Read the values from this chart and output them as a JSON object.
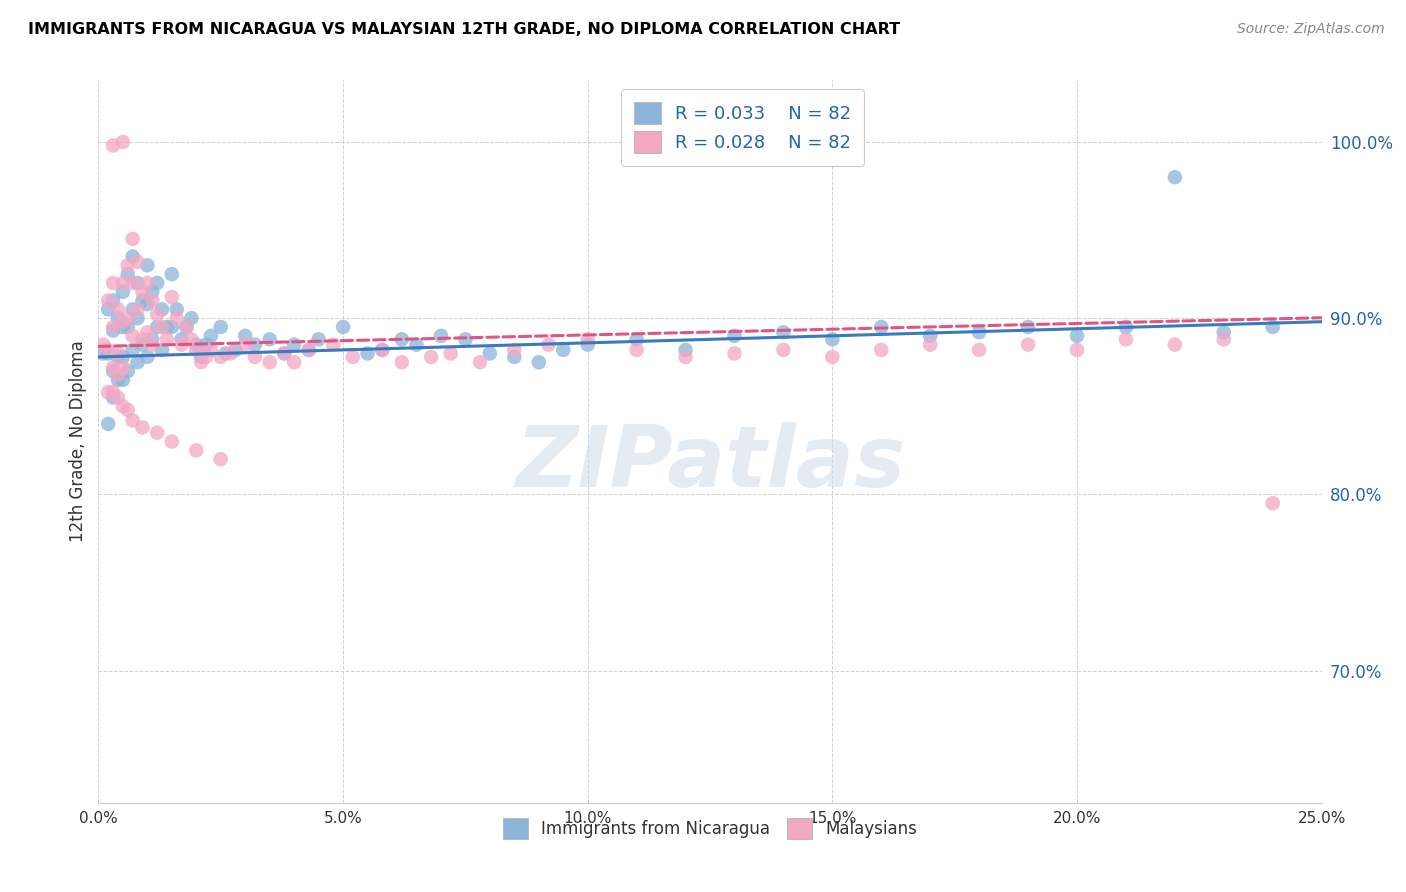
{
  "title": "IMMIGRANTS FROM NICARAGUA VS MALAYSIAN 12TH GRADE, NO DIPLOMA CORRELATION CHART",
  "source": "Source: ZipAtlas.com",
  "ylabel": "12th Grade, No Diploma",
  "ytick_labels": [
    "70.0%",
    "80.0%",
    "90.0%",
    "100.0%"
  ],
  "ytick_values": [
    0.7,
    0.8,
    0.9,
    1.0
  ],
  "xlim": [
    0.0,
    0.25
  ],
  "ylim": [
    0.625,
    1.035
  ],
  "xtick_vals": [
    0.0,
    0.05,
    0.1,
    0.15,
    0.2,
    0.25
  ],
  "xtick_labels": [
    "0.0%",
    "5.0%",
    "10.0%",
    "15.0%",
    "20.0%",
    "25.0%"
  ],
  "legend_blue_r": "0.033",
  "legend_blue_n": "82",
  "legend_pink_r": "0.028",
  "legend_pink_n": "82",
  "legend_label_blue": "Immigrants from Nicaragua",
  "legend_label_pink": "Malaysians",
  "blue_color": "#8ab4d8",
  "pink_color": "#f4a7c3",
  "blue_line_color": "#3a7abf",
  "pink_line_color": "#e05585",
  "watermark": "ZIPatlas",
  "blue_intercept": 0.878,
  "blue_slope": 0.08,
  "pink_intercept": 0.884,
  "pink_slope": 0.065,
  "blue_scatter_x": [
    0.001,
    0.002,
    0.002,
    0.003,
    0.003,
    0.003,
    0.004,
    0.004,
    0.004,
    0.005,
    0.005,
    0.005,
    0.005,
    0.006,
    0.006,
    0.006,
    0.007,
    0.007,
    0.007,
    0.008,
    0.008,
    0.008,
    0.009,
    0.009,
    0.01,
    0.01,
    0.01,
    0.011,
    0.011,
    0.012,
    0.012,
    0.013,
    0.013,
    0.014,
    0.015,
    0.015,
    0.016,
    0.017,
    0.018,
    0.019,
    0.02,
    0.021,
    0.022,
    0.023,
    0.025,
    0.026,
    0.028,
    0.03,
    0.032,
    0.035,
    0.038,
    0.04,
    0.043,
    0.045,
    0.05,
    0.055,
    0.058,
    0.062,
    0.065,
    0.07,
    0.075,
    0.08,
    0.085,
    0.09,
    0.095,
    0.1,
    0.11,
    0.12,
    0.13,
    0.14,
    0.15,
    0.16,
    0.17,
    0.18,
    0.19,
    0.2,
    0.21,
    0.22,
    0.23,
    0.24,
    0.002,
    0.003
  ],
  "blue_scatter_y": [
    0.88,
    0.905,
    0.88,
    0.91,
    0.893,
    0.87,
    0.9,
    0.878,
    0.865,
    0.915,
    0.895,
    0.878,
    0.865,
    0.925,
    0.895,
    0.87,
    0.935,
    0.905,
    0.882,
    0.92,
    0.9,
    0.875,
    0.91,
    0.885,
    0.93,
    0.908,
    0.878,
    0.915,
    0.888,
    0.92,
    0.895,
    0.905,
    0.882,
    0.895,
    0.925,
    0.895,
    0.905,
    0.888,
    0.895,
    0.9,
    0.885,
    0.878,
    0.885,
    0.89,
    0.895,
    0.88,
    0.882,
    0.89,
    0.885,
    0.888,
    0.88,
    0.885,
    0.882,
    0.888,
    0.895,
    0.88,
    0.882,
    0.888,
    0.885,
    0.89,
    0.888,
    0.88,
    0.878,
    0.875,
    0.882,
    0.885,
    0.888,
    0.882,
    0.89,
    0.892,
    0.888,
    0.895,
    0.89,
    0.892,
    0.895,
    0.89,
    0.895,
    0.98,
    0.892,
    0.895,
    0.84,
    0.855
  ],
  "pink_scatter_x": [
    0.001,
    0.002,
    0.002,
    0.003,
    0.003,
    0.003,
    0.004,
    0.004,
    0.004,
    0.005,
    0.005,
    0.005,
    0.006,
    0.006,
    0.007,
    0.007,
    0.007,
    0.008,
    0.008,
    0.009,
    0.009,
    0.01,
    0.01,
    0.011,
    0.011,
    0.012,
    0.013,
    0.014,
    0.015,
    0.016,
    0.017,
    0.018,
    0.019,
    0.02,
    0.021,
    0.022,
    0.023,
    0.025,
    0.027,
    0.03,
    0.032,
    0.035,
    0.038,
    0.04,
    0.043,
    0.048,
    0.052,
    0.058,
    0.062,
    0.068,
    0.072,
    0.078,
    0.085,
    0.092,
    0.1,
    0.11,
    0.12,
    0.13,
    0.14,
    0.15,
    0.16,
    0.17,
    0.18,
    0.19,
    0.2,
    0.21,
    0.22,
    0.23,
    0.24,
    0.002,
    0.003,
    0.004,
    0.005,
    0.006,
    0.007,
    0.009,
    0.012,
    0.015,
    0.02,
    0.025,
    0.003,
    0.005
  ],
  "pink_scatter_y": [
    0.885,
    0.91,
    0.882,
    0.92,
    0.895,
    0.872,
    0.905,
    0.88,
    0.868,
    0.92,
    0.898,
    0.872,
    0.93,
    0.9,
    0.945,
    0.92,
    0.89,
    0.932,
    0.905,
    0.915,
    0.888,
    0.92,
    0.892,
    0.91,
    0.885,
    0.902,
    0.895,
    0.888,
    0.912,
    0.9,
    0.885,
    0.895,
    0.888,
    0.882,
    0.875,
    0.878,
    0.882,
    0.878,
    0.88,
    0.885,
    0.878,
    0.875,
    0.88,
    0.875,
    0.882,
    0.885,
    0.878,
    0.882,
    0.875,
    0.878,
    0.88,
    0.875,
    0.882,
    0.885,
    0.888,
    0.882,
    0.878,
    0.88,
    0.882,
    0.878,
    0.882,
    0.885,
    0.882,
    0.885,
    0.882,
    0.888,
    0.885,
    0.888,
    0.795,
    0.858,
    0.858,
    0.855,
    0.85,
    0.848,
    0.842,
    0.838,
    0.835,
    0.83,
    0.825,
    0.82,
    0.998,
    1.0
  ]
}
